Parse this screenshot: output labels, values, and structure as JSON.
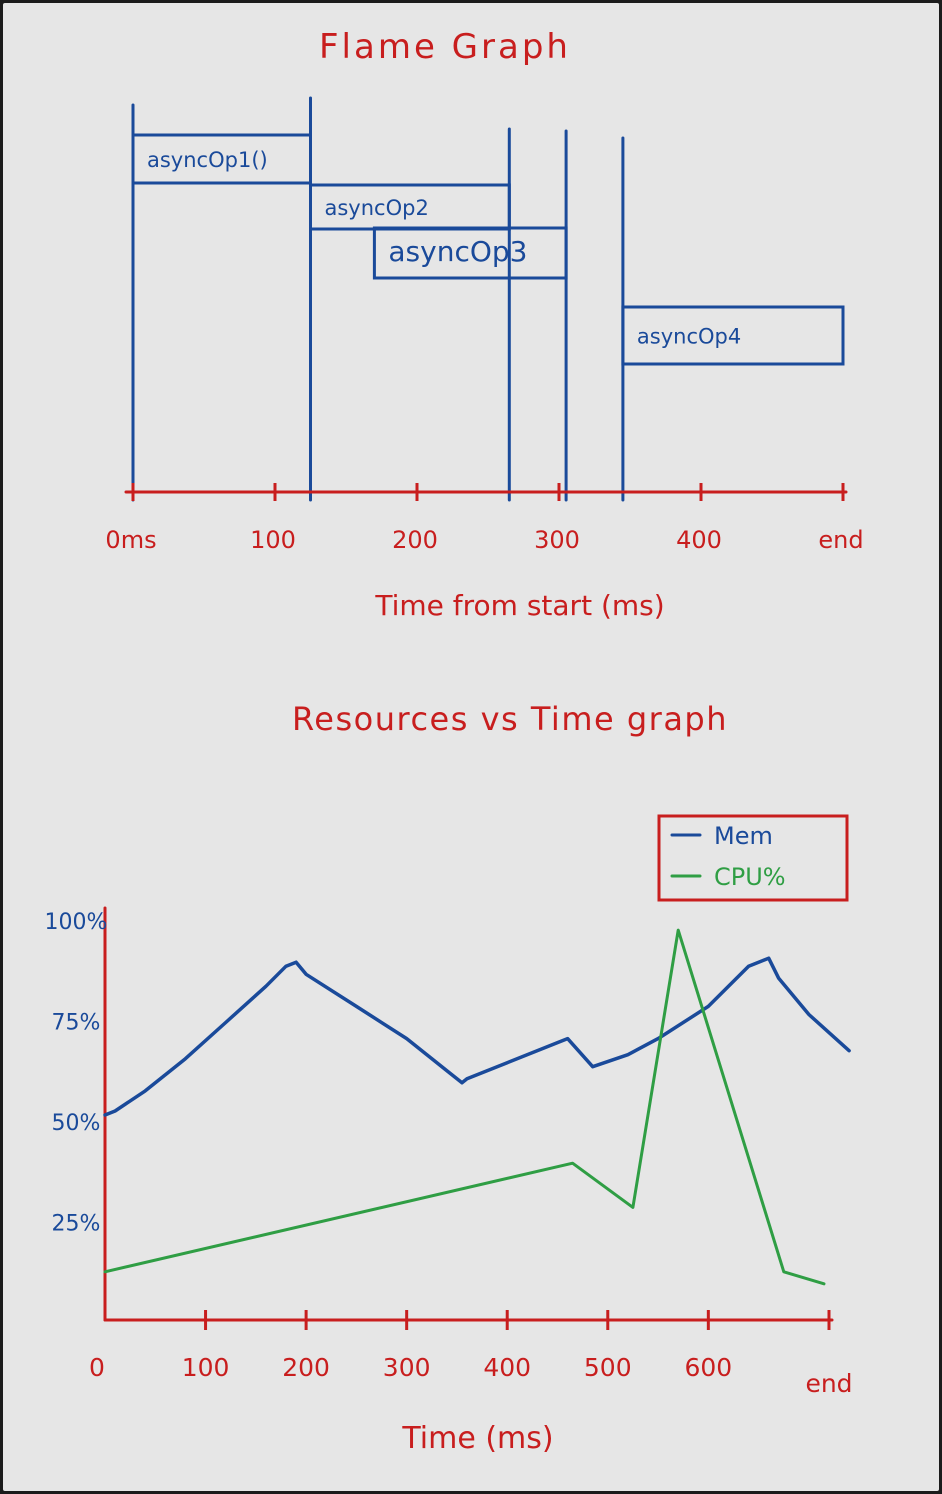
{
  "colors": {
    "board": "#e6e6e6",
    "annotation": "#c81e1e",
    "flame": "#1a4a9a",
    "mem": "#1a4a9a",
    "cpu": "#2f9e44"
  },
  "chart_data": [
    {
      "type": "flame",
      "title": "Flame Graph",
      "xlabel": "Time from start (ms)",
      "ticks": [
        {
          "value": 0,
          "label": "0ms"
        },
        {
          "value": 100,
          "label": "100"
        },
        {
          "value": 200,
          "label": "200"
        },
        {
          "value": 300,
          "label": "300"
        },
        {
          "value": 400,
          "label": "400"
        },
        {
          "value": 500,
          "label": "end"
        }
      ],
      "frames": [
        {
          "label": "asyncOp1()",
          "start": 0,
          "end": 125,
          "depth": 0
        },
        {
          "label": "asyncOp2",
          "start": 125,
          "end": 265,
          "depth": 1
        },
        {
          "label": "asyncOp3",
          "start": 170,
          "end": 305,
          "depth": 2
        },
        {
          "label": "asyncOp4",
          "start": 345,
          "end": 500,
          "depth": 4
        }
      ],
      "markers": [
        0,
        125,
        265,
        305,
        345
      ]
    },
    {
      "type": "line",
      "title": "Resources vs Time graph",
      "xlabel": "Time (ms)",
      "ylabel": "",
      "xticks": [
        {
          "value": 0,
          "label": "0"
        },
        {
          "value": 100,
          "label": "100"
        },
        {
          "value": 200,
          "label": "200"
        },
        {
          "value": 300,
          "label": "300"
        },
        {
          "value": 400,
          "label": "400"
        },
        {
          "value": 500,
          "label": "500"
        },
        {
          "value": 600,
          "label": "600"
        },
        {
          "value": 720,
          "label": "end"
        }
      ],
      "yticks": [
        {
          "value": 25,
          "label": "25%"
        },
        {
          "value": 50,
          "label": "50%"
        },
        {
          "value": 75,
          "label": "75%"
        },
        {
          "value": 100,
          "label": "100%"
        }
      ],
      "xlim": [
        0,
        740
      ],
      "ylim": [
        0,
        100
      ],
      "legend_position": "top-right",
      "series": [
        {
          "name": "Mem",
          "color": "#1a4a9a",
          "x": [
            0,
            10,
            40,
            80,
            120,
            160,
            180,
            190,
            200,
            250,
            300,
            340,
            355,
            360,
            400,
            450,
            460,
            485,
            520,
            550,
            600,
            640,
            660,
            670,
            700,
            740
          ],
          "y": [
            51,
            52,
            57,
            65,
            74,
            83,
            88,
            89,
            86,
            78,
            70,
            62,
            59,
            60,
            64,
            69,
            70,
            63,
            66,
            70,
            78,
            88,
            90,
            85,
            76,
            67
          ]
        },
        {
          "name": "CPU%",
          "color": "#2f9e44",
          "x": [
            0,
            465,
            525,
            570,
            675,
            715
          ],
          "y": [
            12,
            39,
            28,
            97,
            12,
            9
          ]
        }
      ]
    }
  ]
}
